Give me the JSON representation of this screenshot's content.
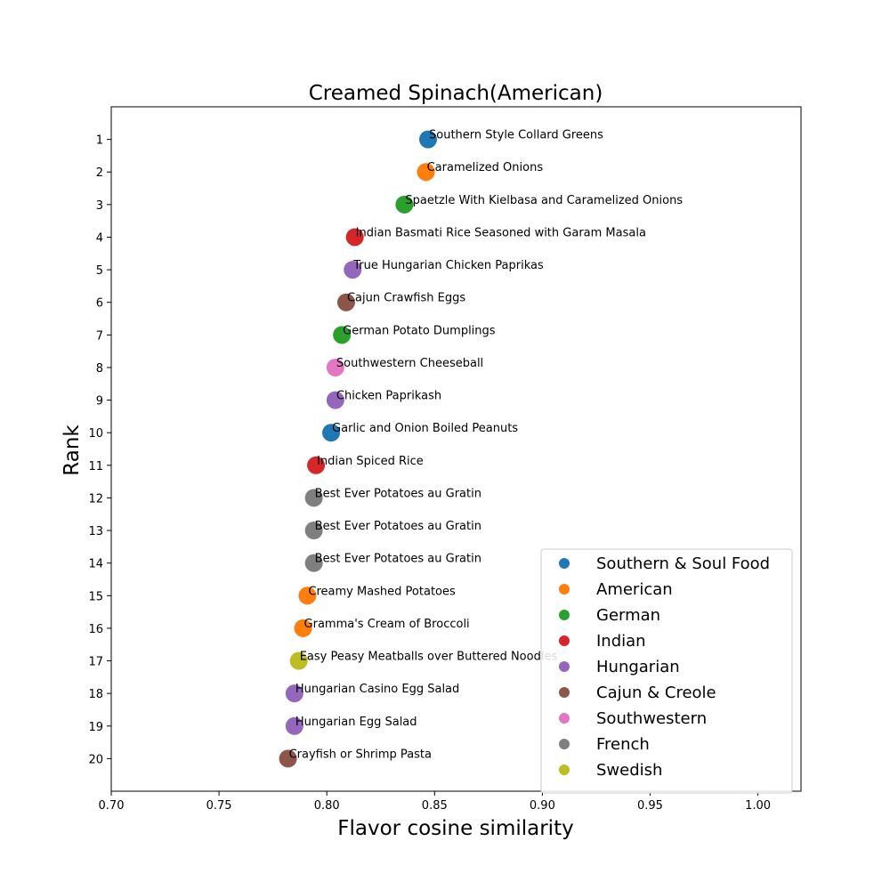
{
  "chart_data": {
    "type": "scatter",
    "title": "Creamed Spinach(American)",
    "xlabel": "Flavor cosine similarity",
    "ylabel": "Rank",
    "xlim": [
      0.7,
      1.02
    ],
    "ylim": [
      21,
      0
    ],
    "xticks": [
      0.7,
      0.75,
      0.8,
      0.85,
      0.9,
      0.95,
      1.0
    ],
    "xtick_labels": [
      "0.70",
      "0.75",
      "0.80",
      "0.85",
      "0.90",
      "0.95",
      "1.00"
    ],
    "yticks": [
      1,
      2,
      3,
      4,
      5,
      6,
      7,
      8,
      9,
      10,
      11,
      12,
      13,
      14,
      15,
      16,
      17,
      18,
      19,
      20
    ],
    "ytick_labels": [
      "1",
      "2",
      "3",
      "4",
      "5",
      "6",
      "7",
      "8",
      "9",
      "10",
      "11",
      "12",
      "13",
      "14",
      "15",
      "16",
      "17",
      "18",
      "19",
      "20"
    ],
    "grid": false,
    "legend_position": "lower-right",
    "legend": [
      {
        "name": "Southern & Soul Food",
        "color": "#1f77b4"
      },
      {
        "name": "American",
        "color": "#ff7f0e"
      },
      {
        "name": "German",
        "color": "#2ca02c"
      },
      {
        "name": "Indian",
        "color": "#d62728"
      },
      {
        "name": "Hungarian",
        "color": "#9467bd"
      },
      {
        "name": "Cajun & Creole",
        "color": "#8c564b"
      },
      {
        "name": "Southwestern",
        "color": "#e377c2"
      },
      {
        "name": "French",
        "color": "#7f7f7f"
      },
      {
        "name": "Swedish",
        "color": "#bcbd22"
      }
    ],
    "points": [
      {
        "rank": 1,
        "x": 0.847,
        "label": "Southern Style Collard Greens",
        "cuisine": "Southern & Soul Food"
      },
      {
        "rank": 2,
        "x": 0.846,
        "label": "Caramelized Onions",
        "cuisine": "American"
      },
      {
        "rank": 3,
        "x": 0.836,
        "label": "Spaetzle With Kielbasa and Caramelized Onions",
        "cuisine": "German"
      },
      {
        "rank": 4,
        "x": 0.813,
        "label": "Indian Basmati Rice Seasoned with Garam Masala",
        "cuisine": "Indian"
      },
      {
        "rank": 5,
        "x": 0.812,
        "label": "True Hungarian Chicken Paprikas",
        "cuisine": "Hungarian"
      },
      {
        "rank": 6,
        "x": 0.809,
        "label": "Cajun Crawfish Eggs",
        "cuisine": "Cajun & Creole"
      },
      {
        "rank": 7,
        "x": 0.807,
        "label": "German Potato Dumplings",
        "cuisine": "German"
      },
      {
        "rank": 8,
        "x": 0.804,
        "label": "Southwestern Cheeseball",
        "cuisine": "Southwestern"
      },
      {
        "rank": 9,
        "x": 0.804,
        "label": "Chicken Paprikash",
        "cuisine": "Hungarian"
      },
      {
        "rank": 10,
        "x": 0.802,
        "label": "Garlic and Onion Boiled Peanuts",
        "cuisine": "Southern & Soul Food"
      },
      {
        "rank": 11,
        "x": 0.795,
        "label": "Indian Spiced Rice",
        "cuisine": "Indian"
      },
      {
        "rank": 12,
        "x": 0.794,
        "label": "Best Ever Potatoes au Gratin",
        "cuisine": "French"
      },
      {
        "rank": 13,
        "x": 0.794,
        "label": "Best Ever Potatoes au Gratin",
        "cuisine": "French"
      },
      {
        "rank": 14,
        "x": 0.794,
        "label": "Best Ever Potatoes au Gratin",
        "cuisine": "French"
      },
      {
        "rank": 15,
        "x": 0.791,
        "label": "Creamy Mashed Potatoes",
        "cuisine": "American"
      },
      {
        "rank": 16,
        "x": 0.789,
        "label": "Gramma's Cream of Broccoli",
        "cuisine": "American"
      },
      {
        "rank": 17,
        "x": 0.787,
        "label": "Easy Peasy Meatballs over Buttered Noodles",
        "cuisine": "Swedish"
      },
      {
        "rank": 18,
        "x": 0.785,
        "label": "Hungarian Casino Egg Salad",
        "cuisine": "Hungarian"
      },
      {
        "rank": 19,
        "x": 0.785,
        "label": "Hungarian Egg Salad",
        "cuisine": "Hungarian"
      },
      {
        "rank": 20,
        "x": 0.782,
        "label": "Crayfish or Shrimp Pasta",
        "cuisine": "Cajun & Creole"
      }
    ]
  }
}
